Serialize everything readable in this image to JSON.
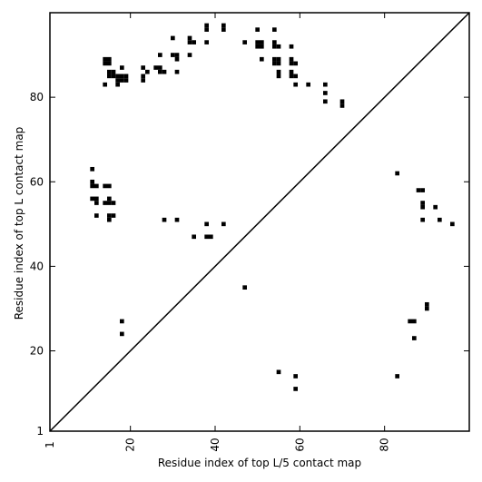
{
  "chart_data": {
    "type": "scatter",
    "xlabel": "Residue index of top L/5 contact map",
    "ylabel": "Residue index of top L contact map",
    "xlim": [
      1,
      100
    ],
    "ylim": [
      1,
      100
    ],
    "x_ticks": [
      {
        "value": 1,
        "label": "1"
      },
      {
        "value": 20,
        "label": "20"
      },
      {
        "value": 40,
        "label": "40"
      },
      {
        "value": 60,
        "label": "60"
      },
      {
        "value": 80,
        "label": "80"
      }
    ],
    "y_ticks": [
      {
        "value": 1,
        "label": "1"
      },
      {
        "value": 20,
        "label": "20"
      },
      {
        "value": 40,
        "label": "40"
      },
      {
        "value": 60,
        "label": "60"
      },
      {
        "value": 80,
        "label": "80"
      }
    ],
    "diagonal": true,
    "grid": false,
    "marker_color": "#000000",
    "series": [
      {
        "region": "upper-left (top L contacts)",
        "points": [
          [
            38,
            96
          ],
          [
            38,
            97
          ],
          [
            42,
            96
          ],
          [
            42,
            97
          ],
          [
            50,
            96
          ],
          [
            54,
            96
          ],
          [
            30,
            94
          ],
          [
            34,
            94
          ],
          [
            34,
            93
          ],
          [
            35,
            93
          ],
          [
            38,
            93
          ],
          [
            47,
            93
          ],
          [
            50,
            93
          ],
          [
            51,
            93
          ],
          [
            50,
            92
          ],
          [
            51,
            92
          ],
          [
            54,
            93
          ],
          [
            54,
            92
          ],
          [
            55,
            92
          ],
          [
            58,
            92
          ],
          [
            27,
            90
          ],
          [
            30,
            90
          ],
          [
            31,
            90
          ],
          [
            31,
            89
          ],
          [
            34,
            90
          ],
          [
            51,
            89
          ],
          [
            14,
            89
          ],
          [
            15,
            89
          ],
          [
            14,
            88
          ],
          [
            15,
            88
          ],
          [
            54,
            89
          ],
          [
            55,
            89
          ],
          [
            54,
            88
          ],
          [
            55,
            88
          ],
          [
            58,
            89
          ],
          [
            58,
            88
          ],
          [
            59,
            88
          ],
          [
            18,
            87
          ],
          [
            23,
            87
          ],
          [
            26,
            87
          ],
          [
            27,
            87
          ],
          [
            27,
            86
          ],
          [
            28,
            86
          ],
          [
            24,
            86
          ],
          [
            31,
            86
          ],
          [
            15,
            86
          ],
          [
            16,
            86
          ],
          [
            15,
            85
          ],
          [
            16,
            85
          ],
          [
            17,
            85
          ],
          [
            18,
            85
          ],
          [
            19,
            85
          ],
          [
            17,
            84
          ],
          [
            18,
            84
          ],
          [
            19,
            84
          ],
          [
            23,
            85
          ],
          [
            23,
            84
          ],
          [
            55,
            86
          ],
          [
            55,
            85
          ],
          [
            58,
            86
          ],
          [
            58,
            85
          ],
          [
            59,
            85
          ],
          [
            14,
            83
          ],
          [
            17,
            83
          ],
          [
            59,
            83
          ],
          [
            62,
            83
          ],
          [
            66,
            83
          ],
          [
            66,
            81
          ],
          [
            66,
            79
          ],
          [
            70,
            79
          ],
          [
            70,
            78
          ]
        ]
      },
      {
        "region": "left band",
        "points": [
          [
            11,
            63
          ],
          [
            11,
            60
          ],
          [
            11,
            59
          ],
          [
            12,
            59
          ],
          [
            14,
            59
          ],
          [
            15,
            59
          ],
          [
            11,
            56
          ],
          [
            12,
            56
          ],
          [
            12,
            55
          ],
          [
            14,
            55
          ],
          [
            15,
            55
          ],
          [
            15,
            56
          ],
          [
            16,
            55
          ],
          [
            12,
            52
          ],
          [
            15,
            52
          ],
          [
            16,
            52
          ],
          [
            15,
            51
          ],
          [
            28,
            51
          ],
          [
            31,
            51
          ],
          [
            38,
            50
          ],
          [
            42,
            50
          ],
          [
            35,
            47
          ],
          [
            38,
            47
          ],
          [
            39,
            47
          ],
          [
            47,
            35
          ]
        ]
      },
      {
        "region": "lower-right (top L/5 contacts)",
        "points": [
          [
            83,
            62
          ],
          [
            88,
            58
          ],
          [
            89,
            58
          ],
          [
            89,
            55
          ],
          [
            89,
            54
          ],
          [
            92,
            54
          ],
          [
            89,
            51
          ],
          [
            93,
            51
          ],
          [
            96,
            50
          ],
          [
            90,
            31
          ],
          [
            90,
            30
          ],
          [
            86,
            27
          ],
          [
            87,
            27
          ],
          [
            87,
            23
          ],
          [
            18,
            27
          ],
          [
            18,
            24
          ],
          [
            55,
            15
          ],
          [
            59,
            14
          ],
          [
            83,
            14
          ],
          [
            59,
            11
          ]
        ]
      }
    ]
  }
}
